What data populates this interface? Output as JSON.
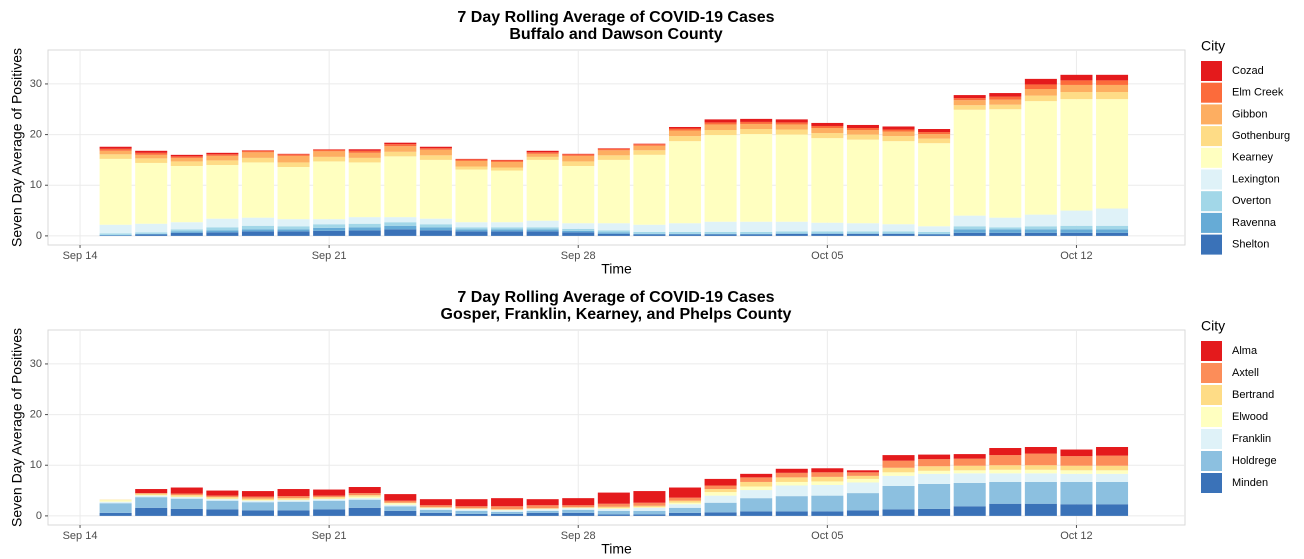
{
  "chart_data": [
    {
      "type": "stacked-bar",
      "title": "7 Day Rolling Average of COVID-19 Cases",
      "subtitle": "Buffalo and Dawson County",
      "x_label": "Time",
      "y_label": "Seven Day Average of Positives",
      "legend_title": "City",
      "categories": [
        "Sep 15",
        "Sep 16",
        "Sep 17",
        "Sep 18",
        "Sep 19",
        "Sep 20",
        "Sep 21",
        "Sep 22",
        "Sep 23",
        "Sep 24",
        "Sep 25",
        "Sep 26",
        "Sep 27",
        "Sep 28",
        "Sep 29",
        "Sep 30",
        "Oct 01",
        "Oct 02",
        "Oct 03",
        "Oct 04",
        "Oct 05",
        "Oct 06",
        "Oct 07",
        "Oct 08",
        "Oct 09",
        "Oct 10",
        "Oct 11",
        "Oct 12",
        "Oct 13"
      ],
      "xticks": [
        "Sep 14",
        "Sep 21",
        "Sep 28",
        "Oct 05",
        "Oct 12"
      ],
      "ylim": [
        -1.8,
        36.7
      ],
      "yticks": [
        0,
        10,
        20,
        30
      ],
      "grid": true,
      "series": [
        {
          "name": "Cozad",
          "color": "#e41a1c",
          "values": [
            0.4,
            0.4,
            0.3,
            0.3,
            0.1,
            0.1,
            0.1,
            0.3,
            0.3,
            0.3,
            0.1,
            0.1,
            0.3,
            0.1,
            0.1,
            0.1,
            0.3,
            0.6,
            0.6,
            0.6,
            0.6,
            0.6,
            0.6,
            0.6,
            0.6,
            0.7,
            1.1,
            1.1,
            1.1
          ]
        },
        {
          "name": "Elm Creek",
          "color": "#fc6b3b",
          "values": [
            0.4,
            0.4,
            0.3,
            0.3,
            0.3,
            0.3,
            0.3,
            0.4,
            0.4,
            0.3,
            0.3,
            0.3,
            0.3,
            0.3,
            0.3,
            0.3,
            0.4,
            0.4,
            0.4,
            0.4,
            0.4,
            0.4,
            0.4,
            0.4,
            0.4,
            0.6,
            0.9,
            0.9,
            0.9
          ]
        },
        {
          "name": "Gibbon",
          "color": "#fdae61",
          "values": [
            0.7,
            0.7,
            0.7,
            0.9,
            1.1,
            1.3,
            1.1,
            1.0,
            1.1,
            1.1,
            1.1,
            1.1,
            0.6,
            1.1,
            1.0,
            0.9,
            1.1,
            1.1,
            1.0,
            1.0,
            1.0,
            0.9,
            0.9,
            0.9,
            1.0,
            1.0,
            1.3,
            1.4,
            1.4
          ]
        },
        {
          "name": "Gothenburg",
          "color": "#fedc86",
          "values": [
            0.9,
            0.9,
            0.9,
            0.9,
            0.9,
            0.9,
            0.9,
            0.9,
            0.9,
            0.9,
            0.6,
            0.6,
            0.6,
            0.9,
            0.9,
            0.9,
            1.0,
            1.0,
            1.0,
            1.0,
            1.0,
            1.0,
            1.0,
            0.9,
            0.9,
            0.9,
            1.1,
            1.4,
            1.4
          ]
        },
        {
          "name": "Kearney",
          "color": "#ffffc0",
          "values": [
            13.0,
            12.0,
            11.1,
            10.6,
            10.9,
            10.3,
            11.4,
            10.8,
            12.0,
            11.6,
            10.4,
            10.2,
            12.0,
            11.3,
            12.5,
            13.8,
            16.2,
            17.1,
            17.3,
            17.2,
            16.7,
            16.5,
            16.4,
            16.4,
            20.9,
            21.4,
            22.4,
            22.0,
            21.6
          ]
        },
        {
          "name": "Lexington",
          "color": "#dff2f8",
          "values": [
            1.7,
            1.7,
            1.4,
            1.7,
            1.6,
            1.4,
            1.0,
            1.3,
            1.0,
            1.1,
            1.0,
            1.0,
            1.3,
            1.1,
            1.4,
            1.4,
            1.7,
            2.0,
            2.0,
            1.9,
            1.7,
            1.6,
            1.4,
            1.1,
            2.1,
            1.9,
            2.3,
            3.0,
            3.4
          ]
        },
        {
          "name": "Overton",
          "color": "#a2d7e8",
          "values": [
            0.3,
            0.3,
            0.4,
            0.6,
            0.7,
            0.6,
            0.7,
            0.7,
            0.7,
            0.6,
            0.4,
            0.4,
            0.4,
            0.4,
            0.4,
            0.4,
            0.4,
            0.4,
            0.4,
            0.4,
            0.4,
            0.4,
            0.4,
            0.4,
            0.6,
            0.4,
            0.6,
            0.7,
            0.7
          ]
        },
        {
          "name": "Ravenna",
          "color": "#66abd6",
          "values": [
            0.1,
            0.1,
            0.3,
            0.4,
            0.4,
            0.4,
            0.6,
            0.6,
            0.7,
            0.6,
            0.4,
            0.4,
            0.4,
            0.3,
            0.3,
            0.1,
            0.1,
            0.1,
            0.1,
            0.1,
            0.1,
            0.1,
            0.1,
            0.1,
            0.7,
            0.7,
            0.7,
            0.7,
            0.7
          ]
        },
        {
          "name": "Shelton",
          "color": "#3a72b8",
          "values": [
            0.1,
            0.3,
            0.6,
            0.7,
            0.9,
            0.9,
            1.0,
            1.1,
            1.3,
            1.1,
            0.9,
            0.9,
            0.9,
            0.7,
            0.4,
            0.3,
            0.3,
            0.3,
            0.3,
            0.4,
            0.4,
            0.4,
            0.4,
            0.3,
            0.6,
            0.6,
            0.6,
            0.6,
            0.6
          ]
        }
      ]
    },
    {
      "type": "stacked-bar",
      "title": "7 Day Rolling Average of COVID-19 Cases",
      "subtitle": "Gosper, Franklin, Kearney, and Phelps County",
      "x_label": "Time",
      "y_label": "Seven Day Average of Positives",
      "legend_title": "City",
      "categories": [
        "Sep 15",
        "Sep 16",
        "Sep 17",
        "Sep 18",
        "Sep 19",
        "Sep 20",
        "Sep 21",
        "Sep 22",
        "Sep 23",
        "Sep 24",
        "Sep 25",
        "Sep 26",
        "Sep 27",
        "Sep 28",
        "Sep 29",
        "Sep 30",
        "Oct 01",
        "Oct 02",
        "Oct 03",
        "Oct 04",
        "Oct 05",
        "Oct 06",
        "Oct 07",
        "Oct 08",
        "Oct 09",
        "Oct 10",
        "Oct 11",
        "Oct 12",
        "Oct 13"
      ],
      "xticks": [
        "Sep 14",
        "Sep 21",
        "Sep 28",
        "Oct 05",
        "Oct 12"
      ],
      "ylim": [
        -1.8,
        36.7
      ],
      "yticks": [
        0,
        10,
        20,
        30
      ],
      "grid": true,
      "series": [
        {
          "name": "Alma",
          "color": "#e41a1c",
          "values": [
            0,
            0.8,
            1.2,
            1.0,
            1.1,
            1.4,
            1.2,
            1.2,
            1.3,
            1.2,
            1.4,
            1.6,
            1.2,
            1.4,
            2.2,
            2.3,
            2.0,
            1.3,
            0.7,
            0.8,
            0.8,
            0.4,
            1.1,
            0.9,
            0.9,
            1.4,
            1.3,
            1.3,
            1.7
          ]
        },
        {
          "name": "Axtell",
          "color": "#fc8d59",
          "values": [
            0,
            0.1,
            0.3,
            0.3,
            0.4,
            0.4,
            0.3,
            0.4,
            0.4,
            0.4,
            0.4,
            0.6,
            0.6,
            0.4,
            0.6,
            0.6,
            0.6,
            0.7,
            0.9,
            0.9,
            0.9,
            0.7,
            1.4,
            1.4,
            1.4,
            2.0,
            2.3,
            1.9,
            2.0
          ]
        },
        {
          "name": "Bertrand",
          "color": "#fedc86",
          "values": [
            0.1,
            0.3,
            0.3,
            0.3,
            0.3,
            0.3,
            0.3,
            0.3,
            0.1,
            0.1,
            0.1,
            0.1,
            0.1,
            0.1,
            0.3,
            0.3,
            0.4,
            0.6,
            0.9,
            0.9,
            0.9,
            0.6,
            0.9,
            0.9,
            0.9,
            0.9,
            0.9,
            0.9,
            0.9
          ]
        },
        {
          "name": "Elwood",
          "color": "#ffffc0",
          "values": [
            0.3,
            0.1,
            0.1,
            0.1,
            0.1,
            0.1,
            0.1,
            0.3,
            0.3,
            0.1,
            0.1,
            0.1,
            0.1,
            0.1,
            0.1,
            0.1,
            0.3,
            0.7,
            0.7,
            0.7,
            0.7,
            0.7,
            0.7,
            0.6,
            0.6,
            0.7,
            0.7,
            0.7,
            0.7
          ]
        },
        {
          "name": "Franklin",
          "color": "#dff2f8",
          "values": [
            0.3,
            0.3,
            0.3,
            0.3,
            0.3,
            0.3,
            0.3,
            0.3,
            0.3,
            0.3,
            0.3,
            0.3,
            0.3,
            0.3,
            0.4,
            0.6,
            0.7,
            1.4,
            1.6,
            2.1,
            2.1,
            2.1,
            2.0,
            2.0,
            1.9,
            1.7,
            1.7,
            1.6,
            1.6
          ]
        },
        {
          "name": "Holdrege",
          "color": "#8cc0e0",
          "values": [
            1.9,
            2.1,
            2.0,
            1.7,
            1.6,
            1.7,
            1.7,
            1.6,
            0.9,
            0.6,
            0.6,
            0.4,
            0.4,
            0.6,
            0.7,
            0.7,
            1.0,
            1.9,
            2.6,
            3.0,
            3.1,
            3.4,
            4.6,
            4.9,
            4.6,
            4.3,
            4.3,
            4.4,
            4.4
          ]
        },
        {
          "name": "Minden",
          "color": "#3a72b8",
          "values": [
            0.6,
            1.6,
            1.4,
            1.3,
            1.1,
            1.1,
            1.3,
            1.6,
            1.0,
            0.6,
            0.4,
            0.4,
            0.6,
            0.6,
            0.3,
            0.3,
            0.6,
            0.7,
            0.9,
            0.9,
            0.9,
            1.1,
            1.3,
            1.4,
            1.9,
            2.4,
            2.4,
            2.3,
            2.3
          ]
        }
      ]
    }
  ]
}
